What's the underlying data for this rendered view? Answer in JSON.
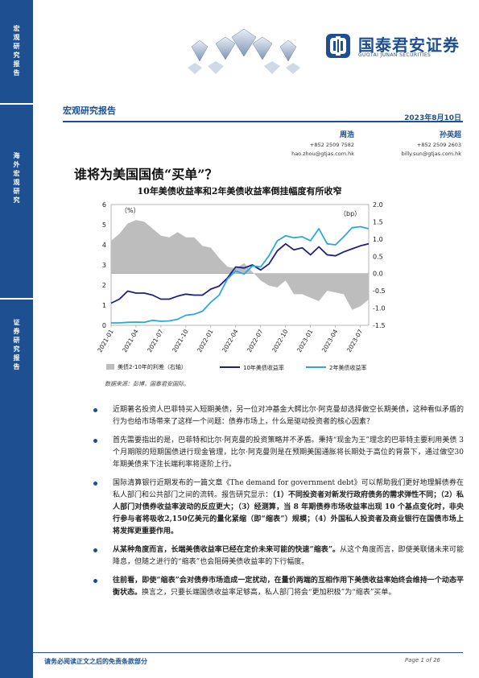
{
  "sidebar": {
    "segments": [
      {
        "text": "宏观研究报告"
      },
      {
        "text": "海外宏观研究"
      },
      {
        "text": "证券研究报告"
      }
    ]
  },
  "header": {
    "logo_cn": "国泰君安证券",
    "logo_en": "GUOTAI JUNAN SECURITIES",
    "report_type": "宏观研究报告",
    "date": "2023年8月10日"
  },
  "authors": [
    {
      "name": "周浩",
      "phone": "+852 2509 7582",
      "email": "hao.zhou@gtjas.com.hk"
    },
    {
      "name": "孙英超",
      "phone": "+852 2509 2603",
      "email": "billy.sun@gtjas.com.hk"
    }
  ],
  "title": "谁将为美国国债“买单”？",
  "chart_title": "10年美债收益率和2年美债收益率倒挂幅度有所收窄",
  "chart_data": {
    "type": "line",
    "left_axis_label": "（%）",
    "right_axis_label": "（bp）",
    "left_ylim": [
      0,
      6
    ],
    "right_ylim": [
      -1.5,
      2.0
    ],
    "left_ticks": [
      "0",
      "1",
      "2",
      "3",
      "4",
      "5",
      "6"
    ],
    "right_ticks": [
      "-1.5",
      "-1.0",
      "-0.5",
      "0.0",
      "0.5",
      "1.0",
      "1.5",
      "2.0"
    ],
    "x_ticks": [
      "2021-01",
      "2021-04",
      "2021-07",
      "2021-10",
      "2022-01",
      "2022-04",
      "2022-07",
      "2022-10",
      "2023-01",
      "2023-04",
      "2023-07"
    ],
    "x": [
      "2021-01",
      "2021-02",
      "2021-03",
      "2021-04",
      "2021-05",
      "2021-06",
      "2021-07",
      "2021-08",
      "2021-09",
      "2021-10",
      "2021-11",
      "2021-12",
      "2022-01",
      "2022-02",
      "2022-03",
      "2022-04",
      "2022-05",
      "2022-06",
      "2022-07",
      "2022-08",
      "2022-09",
      "2022-10",
      "2022-11",
      "2022-12",
      "2023-01",
      "2023-02",
      "2023-03",
      "2023-04",
      "2023-05",
      "2023-06",
      "2023-07",
      "2023-08"
    ],
    "series": [
      {
        "name": "美债2-10年的利差（右轴）",
        "axis": "right",
        "style": "area",
        "color": "#bdbdbd",
        "values": [
          0.95,
          1.15,
          1.45,
          1.55,
          1.5,
          1.3,
          1.1,
          1.05,
          1.2,
          1.05,
          1.05,
          0.8,
          0.75,
          0.45,
          0.2,
          0.15,
          0.3,
          0.05,
          -0.2,
          -0.35,
          -0.4,
          -0.2,
          -0.6,
          -0.6,
          -0.7,
          -0.8,
          -0.5,
          -0.55,
          -0.6,
          -1.05,
          -0.95,
          -0.75
        ]
      },
      {
        "name": "10年美债收益率",
        "axis": "left",
        "style": "line",
        "color": "#1b1f8a",
        "values": [
          1.1,
          1.3,
          1.7,
          1.6,
          1.6,
          1.5,
          1.3,
          1.3,
          1.45,
          1.55,
          1.5,
          1.5,
          1.8,
          1.95,
          2.35,
          2.9,
          2.85,
          3.0,
          2.75,
          3.05,
          3.7,
          4.05,
          3.75,
          3.85,
          3.5,
          3.9,
          3.5,
          3.45,
          3.65,
          3.8,
          3.95,
          4.05
        ]
      },
      {
        "name": "2年美债收益率",
        "axis": "left",
        "style": "line",
        "color": "#29a8e0",
        "values": [
          0.12,
          0.12,
          0.15,
          0.16,
          0.15,
          0.25,
          0.2,
          0.22,
          0.3,
          0.5,
          0.55,
          0.7,
          1.15,
          1.5,
          2.3,
          2.7,
          2.55,
          2.95,
          2.9,
          3.45,
          4.2,
          4.45,
          4.35,
          4.4,
          4.2,
          4.8,
          4.05,
          4.0,
          4.4,
          4.85,
          4.9,
          4.8
        ]
      }
    ],
    "legend_placement": "bottom"
  },
  "source": "数据来源：彭博，国泰君安国际。",
  "bullets": [
    {
      "parts": [
        {
          "t": "近期著名投资人巴菲特买入短期美债，另一位对冲基金大鳄比尔·阿克曼却选择做空长期美债，这种看似矛盾的行为也给市场带来了这样一个问题：债券市场上，什么是驱动投资者的核心因素？",
          "b": false
        }
      ]
    },
    {
      "parts": [
        {
          "t": "首先需要指出的是，巴菲特和比尔·阿克曼的投资策略并不矛盾。秉持“现金为王”理念的巴菲特主要利用美债 3 个月期限的短期国债进行现金管理，比尔·阿克曼则是在预期美国通胀将长期处于高位的背景下，通过做空30年期美债来下注长端利率将逐阶上行。",
          "b": false
        }
      ]
    },
    {
      "parts": [
        {
          "t": "国际清算银行近期发布的一篇文章《The demand for government debt》可以帮助我们更好地理解债券在私人部门和公共部门之间的流转。报告研究显示：",
          "b": false
        },
        {
          "t": "（1）不同投资者对新发行政府债务的需求弹性不同；（2）私人部门对债券收益率波动的反应更大；（3）经测算，当 8 年期债券市场收益率出现 10 个基点变化时，非央行参与者将吸收2,150亿美元的量化紧缩（即“缩表”）规模；（4）外国私人投资者及商业银行在国债市场上将发挥更重要作用。",
          "b": true
        }
      ]
    },
    {
      "parts": [
        {
          "t": "从某种角度而言，长端美债收益率已经在定价未来可能的快速“缩表”。",
          "b": true
        },
        {
          "t": "从这个角度而言，即使美联储未来可能降息，但随之进行的“缩表”也会阻碍美债收益率的下行幅度。",
          "b": false
        }
      ]
    },
    {
      "parts": [
        {
          "t": "往前看，即使“缩表”会对债券市场造成一定扰动，在量价两端的互相作用下美债收益率始终会维持一个动态平衡状态。",
          "b": true
        },
        {
          "t": "换言之，只要长端国债收益率足够高，私人部门将会“更加积极”为“缩表”买单。",
          "b": false
        }
      ]
    }
  ],
  "footer": {
    "disclaimer": "请务必阅读正文之后的免责条款部分",
    "page": "Page 1 of 26"
  }
}
